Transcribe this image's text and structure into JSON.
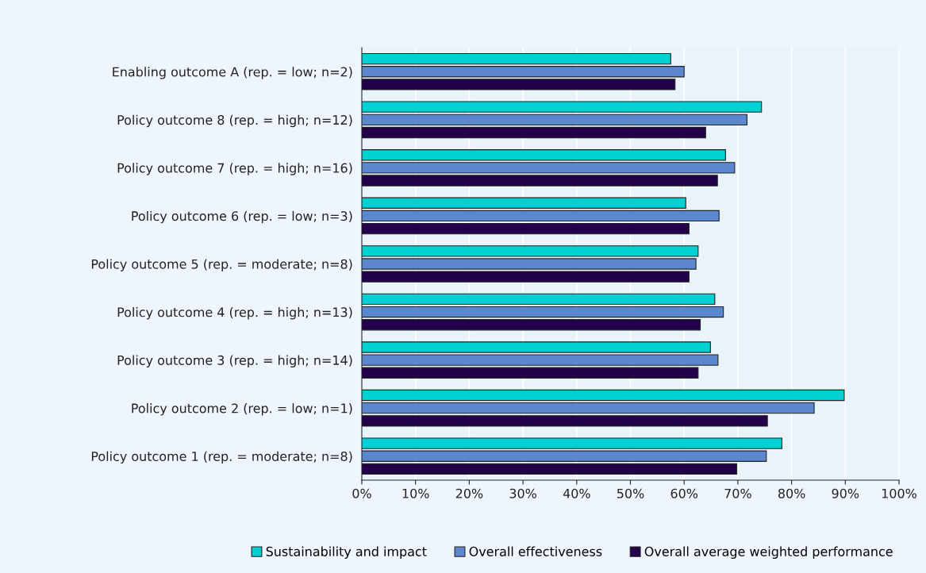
{
  "chart_data": {
    "type": "bar",
    "orientation": "horizontal",
    "categories": [
      "Enabling outcome A (rep. = low; n=2)",
      "Policy outcome 8 (rep. = high; n=12)",
      "Policy outcome 7 (rep. = high; n=16)",
      "Policy outcome 6 (rep. = low; n=3)",
      "Policy outcome 5 (rep. = moderate; n=8)",
      "Policy outcome 4 (rep. = high; n=13)",
      "Policy outcome 3 (rep. = high; n=14)",
      "Policy outcome 2 (rep. = low; n=1)",
      "Policy outcome 1 (rep. = moderate; n=8)"
    ],
    "series": [
      {
        "name": "Sustainability and impact",
        "color": "#00d0d2",
        "values": [
          57.5,
          74.4,
          67.7,
          60.3,
          62.6,
          65.7,
          64.9,
          89.8,
          78.2
        ]
      },
      {
        "name": "Overall effectiveness",
        "color": "#5b87cf",
        "values": [
          60.0,
          71.7,
          69.4,
          66.5,
          62.2,
          67.3,
          66.3,
          84.2,
          75.3
        ]
      },
      {
        "name": "Overall average weighted performance",
        "color": "#22004a",
        "values": [
          58.3,
          64.0,
          66.2,
          60.9,
          60.9,
          63.0,
          62.6,
          75.5,
          69.8
        ]
      }
    ],
    "xlim": [
      0,
      100
    ],
    "xticks": [
      {
        "value": 0,
        "label": "0%"
      },
      {
        "value": 10,
        "label": "10%"
      },
      {
        "value": 20,
        "label": "20%"
      },
      {
        "value": 30,
        "label": "30%"
      },
      {
        "value": 40,
        "label": "40%"
      },
      {
        "value": 50,
        "label": "50%"
      },
      {
        "value": 60,
        "label": "60%"
      },
      {
        "value": 70,
        "label": "70%"
      },
      {
        "value": 80,
        "label": "80%"
      },
      {
        "value": 90,
        "label": "90%"
      },
      {
        "value": 100,
        "label": "100%"
      }
    ],
    "grid": "x",
    "legend": "bottom"
  }
}
